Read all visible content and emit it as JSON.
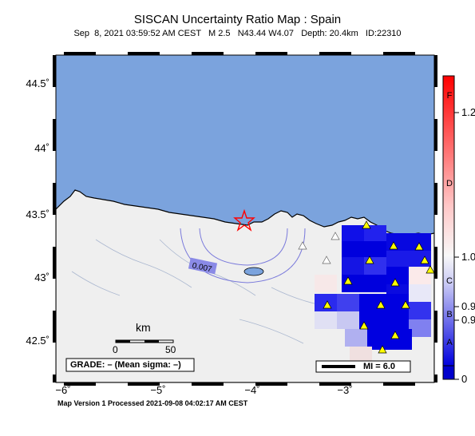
{
  "map": {
    "title": "SISCAN Uncertainty Ratio Map : Spain",
    "subtitle": "Sep  8, 2021 03:59:52 AM CEST   M 2.5   N43.44 W4.07   Depth: 20.4km   ID:22310",
    "footer": "Map Version 1 Processed 2021-09-08 04:02:17 AM CEST",
    "lat_labels": [
      "44.5˚",
      "44˚",
      "43.5˚",
      "43˚",
      "42.5˚"
    ],
    "lon_labels": [
      "−6˚",
      "−5˚",
      "−4˚",
      "−3˚"
    ],
    "scale_bar": {
      "unit": "km",
      "min": "0",
      "max": "50"
    },
    "grade_box": "GRADE: – (Mean sigma: –)",
    "mi_box": "MI = 6.0",
    "contour_label": "0.007",
    "epicenter": {
      "lat": 43.44,
      "lon": -4.07,
      "marker": "red-star"
    },
    "colors": {
      "sea": "#7ba3dd",
      "land": "#efefef",
      "high": "#ff0000",
      "low": "#0000cc"
    }
  },
  "colorbar": {
    "tick_labels": [
      "1.2",
      "1.0",
      "0.9",
      "0.9",
      "0"
    ],
    "grade_letters": [
      "F",
      "D",
      "C",
      "B",
      "A"
    ]
  }
}
